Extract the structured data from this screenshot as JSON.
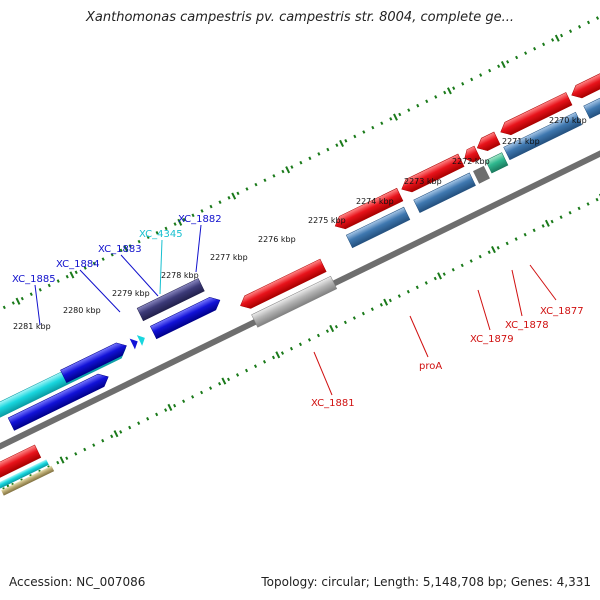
{
  "title": "Xanthomonas campestris pv. campestris str. 8004, complete ge...",
  "footer": {
    "accession": "Accession: NC_007086",
    "summary": "Topology: circular; Length: 5,148,708 bp; Genes: 4,331"
  },
  "scale_labels": [
    "2270 kbp",
    "2271 kbp",
    "2272 kbp",
    "2273 kbp",
    "2274 kbp",
    "2275 kbp",
    "2276 kbp",
    "2277 kbp",
    "2278 kbp",
    "2279 kbp",
    "2280 kbp",
    "2281 kbp"
  ],
  "gene_labels": {
    "upper": [
      "XC_1885",
      "XC_1884",
      "XC_1883",
      "XC_4345",
      "XC_1882"
    ],
    "lower": [
      "XC_1881",
      "proA",
      "XC_1879",
      "XC_1878",
      "XC_1877"
    ]
  },
  "colors": {
    "red_gene": "#e8131b",
    "cyan_gene": "#18d6de",
    "blue_gene": "#1212d8",
    "steel_gene": "#3f78b0",
    "dark_slate_gene": "#3c3a78",
    "grey_gene": "#b4b4b4",
    "backbone": "#6e6e6e",
    "ruler": "#1a7a1a",
    "label_blue": "#1010cc",
    "label_cyan": "#18c0d0",
    "label_red": "#d01010"
  }
}
